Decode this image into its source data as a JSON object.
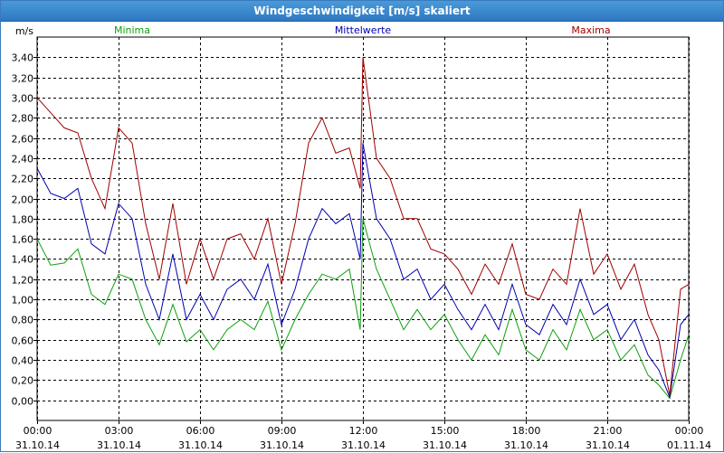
{
  "window": {
    "title": "Windgeschwindigkeit [m/s] skaliert"
  },
  "colors": {
    "minima": "#10a010",
    "mittelwerte": "#0000b0",
    "maxima": "#a00000",
    "grid": "#000000",
    "titlebar": "#3a84cc"
  },
  "chart_data": {
    "type": "line",
    "title": "Windgeschwindigkeit [m/s] skaliert",
    "ylabel": "m/s",
    "xlabel": "",
    "ylim": [
      -0.2,
      3.6
    ],
    "xlim": [
      0,
      24
    ],
    "grid": true,
    "legend_placement": "top",
    "y_ticks": [
      "0,00",
      "0,20",
      "0,40",
      "0,60",
      "0,80",
      "1,00",
      "1,20",
      "1,40",
      "1,60",
      "1,80",
      "2,00",
      "2,20",
      "2,40",
      "2,60",
      "2,80",
      "3,00",
      "3,20",
      "3,40"
    ],
    "x_ticks": [
      {
        "time": "00:00",
        "date": "31.10.14"
      },
      {
        "time": "03:00",
        "date": "31.10.14"
      },
      {
        "time": "06:00",
        "date": "31.10.14"
      },
      {
        "time": "09:00",
        "date": "31.10.14"
      },
      {
        "time": "12:00",
        "date": "31.10.14"
      },
      {
        "time": "15:00",
        "date": "31.10.14"
      },
      {
        "time": "18:00",
        "date": "31.10.14"
      },
      {
        "time": "21:00",
        "date": "31.10.14"
      },
      {
        "time": "00:00",
        "date": "01.11.14"
      }
    ],
    "x_hours": [
      0,
      0.5,
      1,
      1.5,
      2,
      2.5,
      3,
      3.5,
      4,
      4.5,
      5,
      5.5,
      6,
      6.5,
      7,
      7.5,
      8,
      8.5,
      9,
      9.5,
      10,
      10.5,
      11,
      11.5,
      11.9,
      12,
      12.5,
      13,
      13.5,
      14,
      14.5,
      15,
      15.5,
      16,
      16.5,
      17,
      17.5,
      18,
      18.5,
      19,
      19.5,
      20,
      20.5,
      21,
      21.5,
      22,
      22.5,
      22.9,
      23.3,
      23.7,
      24
    ],
    "series": [
      {
        "name": "Minima",
        "values": [
          1.6,
          1.34,
          1.36,
          1.5,
          1.05,
          0.95,
          1.25,
          1.2,
          0.8,
          0.55,
          0.95,
          0.58,
          0.7,
          0.5,
          0.7,
          0.8,
          0.7,
          0.98,
          0.5,
          0.8,
          1.05,
          1.25,
          1.2,
          1.3,
          0.7,
          1.8,
          1.3,
          1.0,
          0.7,
          0.9,
          0.7,
          0.85,
          0.6,
          0.4,
          0.65,
          0.45,
          0.9,
          0.5,
          0.4,
          0.7,
          0.5,
          0.9,
          0.6,
          0.7,
          0.4,
          0.55,
          0.25,
          0.15,
          0.02,
          0.4,
          0.65
        ]
      },
      {
        "name": "Mittelwerte",
        "values": [
          2.3,
          2.05,
          2.0,
          2.1,
          1.55,
          1.45,
          1.95,
          1.8,
          1.15,
          0.8,
          1.45,
          0.8,
          1.05,
          0.8,
          1.1,
          1.2,
          1.0,
          1.35,
          0.75,
          1.1,
          1.6,
          1.9,
          1.75,
          1.85,
          1.4,
          2.55,
          1.8,
          1.6,
          1.2,
          1.3,
          1.0,
          1.15,
          0.9,
          0.7,
          0.95,
          0.7,
          1.15,
          0.75,
          0.65,
          0.95,
          0.75,
          1.2,
          0.85,
          0.95,
          0.6,
          0.8,
          0.45,
          0.3,
          0.03,
          0.75,
          0.85
        ]
      },
      {
        "name": "Maxima",
        "values": [
          3.0,
          2.85,
          2.7,
          2.65,
          2.2,
          1.9,
          2.7,
          2.55,
          1.75,
          1.2,
          1.95,
          1.15,
          1.6,
          1.2,
          1.6,
          1.65,
          1.4,
          1.8,
          1.15,
          1.75,
          2.55,
          2.8,
          2.45,
          2.5,
          2.1,
          3.4,
          2.4,
          2.2,
          1.8,
          1.8,
          1.5,
          1.45,
          1.3,
          1.05,
          1.35,
          1.15,
          1.55,
          1.05,
          1.0,
          1.3,
          1.15,
          1.9,
          1.25,
          1.45,
          1.1,
          1.35,
          0.85,
          0.6,
          0.05,
          1.1,
          1.15
        ]
      }
    ]
  }
}
